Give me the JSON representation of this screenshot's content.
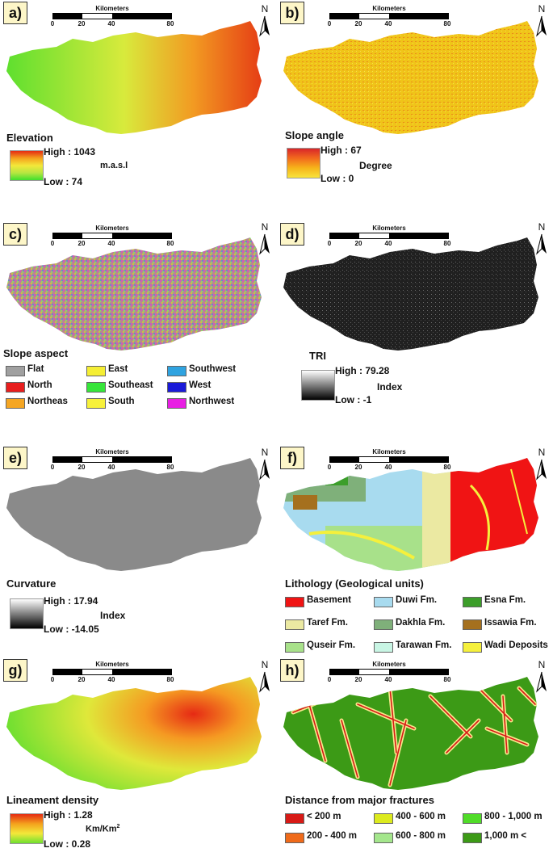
{
  "scale": {
    "title": "Kilometers",
    "ticks": [
      "0",
      "20",
      "40",
      "80"
    ]
  },
  "north_label": "N",
  "panels": {
    "a": {
      "label": "a)",
      "title": "Elevation",
      "high": "High : 1043",
      "low": "Low : 74",
      "unit": "m.a.s.l",
      "colors": [
        "#e52b12",
        "#f4a21d",
        "#f3e83a",
        "#b7e641",
        "#3fe02d"
      ]
    },
    "b": {
      "label": "b)",
      "title": "Slope angle",
      "high": "High : 67",
      "low": "Low : 0",
      "unit": "Degree",
      "colors": [
        "#d9262a",
        "#f26a1d",
        "#f6b41a",
        "#f8e43c"
      ]
    },
    "c": {
      "label": "c)",
      "title": "Slope aspect",
      "items": [
        {
          "label": "Flat",
          "color": "#a0a0a0"
        },
        {
          "label": "North",
          "color": "#e81e1e"
        },
        {
          "label": "Northeas",
          "color": "#f5a623"
        },
        {
          "label": "East",
          "color": "#f5ee34"
        },
        {
          "label": "Southeast",
          "color": "#36e53a"
        },
        {
          "label": "South",
          "color": "#f7f13b"
        },
        {
          "label": "Southwest",
          "color": "#2fa3e0"
        },
        {
          "label": "West",
          "color": "#1a1ad8"
        },
        {
          "label": "Northwest",
          "color": "#e81ee3"
        }
      ]
    },
    "d": {
      "label": "d)",
      "title": "TRI",
      "high": "High : 79.28",
      "low": "Low : -1",
      "unit": "Index"
    },
    "e": {
      "label": "e)",
      "title": "Curvature",
      "high": "High : 17.94",
      "low": "Low : -14.05",
      "unit": "Index"
    },
    "f": {
      "label": "f)",
      "title": "Lithology (Geological units)",
      "items": [
        {
          "label": "Basement",
          "color": "#f01414"
        },
        {
          "label": "Taref Fm.",
          "color": "#ebe9a2"
        },
        {
          "label": "Quseir Fm.",
          "color": "#a8e18a"
        },
        {
          "label": "Duwi Fm.",
          "color": "#a8dbef"
        },
        {
          "label": "Dakhla Fm.",
          "color": "#7fb07a"
        },
        {
          "label": "Tarawan Fm.",
          "color": "#c8f5e4"
        },
        {
          "label": "Esna Fm.",
          "color": "#3c9e2a"
        },
        {
          "label": "Issawia Fm.",
          "color": "#a5701e"
        },
        {
          "label": "Wadi Deposits",
          "color": "#f5f03c"
        }
      ]
    },
    "g": {
      "label": "g)",
      "title": "Lineament density",
      "high": "High : 1.28",
      "low": "Low : 0.28",
      "unit": "Km/Km",
      "unit_sup": "2"
    },
    "h": {
      "label": "h)",
      "title": "Distance from major fractures",
      "items": [
        {
          "label": "< 200 m",
          "color": "#d71a16"
        },
        {
          "label": "200 - 400 m",
          "color": "#ef6a1a"
        },
        {
          "label": "400 - 600 m",
          "color": "#dcea1e"
        },
        {
          "label": "600 - 800 m",
          "color": "#a4e68c"
        },
        {
          "label": "800 - 1,000 m",
          "color": "#50dc28"
        },
        {
          "label": "1,000  m <",
          "color": "#3c9a16"
        }
      ]
    }
  }
}
